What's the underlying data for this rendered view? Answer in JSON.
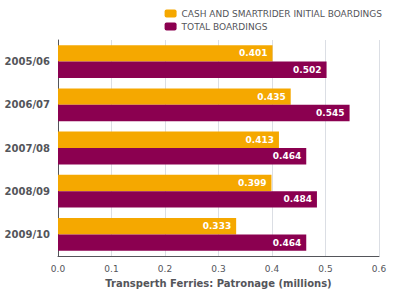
{
  "chart_data": {
    "type": "bar",
    "orientation": "horizontal",
    "xlabel": "Transperth Ferries: Patronage (millions)",
    "categories": [
      "2005/06",
      "2006/07",
      "2007/08",
      "2008/09",
      "2009/10"
    ],
    "series": [
      {
        "name": "CASH AND SMARTRIDER INITIAL BOARDINGS",
        "color": "#F5A800",
        "values": [
          0.401,
          0.435,
          0.413,
          0.399,
          0.333
        ]
      },
      {
        "name": "TOTAL BOARDINGS",
        "color": "#8B0050",
        "values": [
          0.502,
          0.545,
          0.464,
          0.484,
          0.464
        ]
      }
    ],
    "xlim": [
      0,
      0.6
    ],
    "xticks": [
      {
        "value": 0,
        "label": "0.0"
      },
      0.1,
      0.2,
      0.3,
      0.4,
      0.5,
      0.6
    ],
    "grid": true,
    "legend": "upper right",
    "data_labels": true
  }
}
